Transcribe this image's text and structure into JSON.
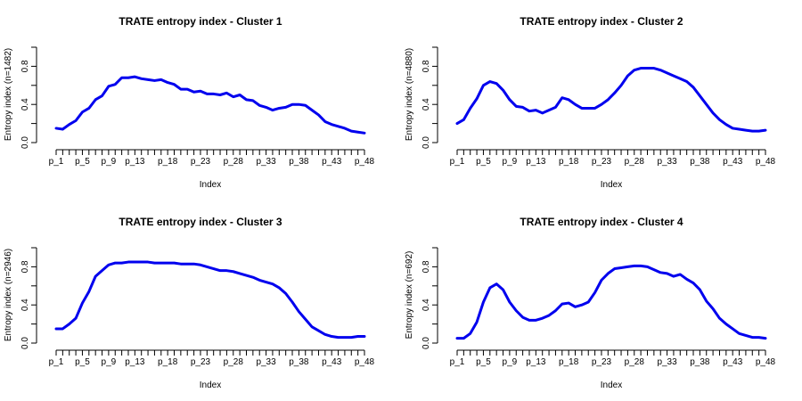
{
  "colors": {
    "series": "#0000ee",
    "axis": "#000000"
  },
  "chart_data": [
    {
      "type": "line",
      "title": "TRATE entropy index - Cluster 1",
      "xlabel": "Index",
      "ylabel": "Entropy index (n=1482)",
      "x_tick_labels": [
        "p_1",
        "p_5",
        "p_9",
        "p_13",
        "p_18",
        "p_23",
        "p_28",
        "p_33",
        "p_38",
        "p_43",
        "p_48"
      ],
      "y_ticks": [
        "0.0",
        "0.4",
        "0.8"
      ],
      "ylim": [
        0,
        1
      ],
      "values": [
        0.15,
        0.14,
        0.19,
        0.23,
        0.32,
        0.36,
        0.45,
        0.49,
        0.59,
        0.61,
        0.68,
        0.68,
        0.69,
        0.67,
        0.66,
        0.65,
        0.66,
        0.63,
        0.61,
        0.56,
        0.56,
        0.53,
        0.54,
        0.51,
        0.51,
        0.5,
        0.52,
        0.48,
        0.5,
        0.45,
        0.44,
        0.39,
        0.37,
        0.34,
        0.36,
        0.37,
        0.4,
        0.4,
        0.39,
        0.34,
        0.29,
        0.22,
        0.19,
        0.17,
        0.15,
        0.12,
        0.11,
        0.1
      ]
    },
    {
      "type": "line",
      "title": "TRATE entropy index - Cluster 2",
      "xlabel": "Index",
      "ylabel": "Entropy index (n=4880)",
      "x_tick_labels": [
        "p_1",
        "p_5",
        "p_9",
        "p_13",
        "p_18",
        "p_23",
        "p_28",
        "p_33",
        "p_38",
        "p_43",
        "p_48"
      ],
      "y_ticks": [
        "0.0",
        "0.4",
        "0.8"
      ],
      "ylim": [
        0,
        1
      ],
      "values": [
        0.2,
        0.24,
        0.36,
        0.46,
        0.6,
        0.64,
        0.62,
        0.55,
        0.45,
        0.38,
        0.37,
        0.33,
        0.34,
        0.31,
        0.34,
        0.37,
        0.47,
        0.45,
        0.4,
        0.36,
        0.36,
        0.36,
        0.4,
        0.45,
        0.52,
        0.6,
        0.7,
        0.76,
        0.78,
        0.78,
        0.78,
        0.76,
        0.73,
        0.7,
        0.67,
        0.64,
        0.58,
        0.49,
        0.4,
        0.31,
        0.24,
        0.19,
        0.15,
        0.14,
        0.13,
        0.12,
        0.12,
        0.13
      ]
    },
    {
      "type": "line",
      "title": "TRATE entropy index - Cluster 3",
      "xlabel": "Index",
      "ylabel": "Entropy index (n=2946)",
      "x_tick_labels": [
        "p_1",
        "p_5",
        "p_9",
        "p_13",
        "p_18",
        "p_23",
        "p_28",
        "p_33",
        "p_38",
        "p_43",
        "p_48"
      ],
      "y_ticks": [
        "0.0",
        "0.4",
        "0.8"
      ],
      "ylim": [
        0,
        1
      ],
      "values": [
        0.15,
        0.15,
        0.2,
        0.26,
        0.42,
        0.54,
        0.7,
        0.76,
        0.82,
        0.84,
        0.84,
        0.85,
        0.85,
        0.85,
        0.85,
        0.84,
        0.84,
        0.84,
        0.84,
        0.83,
        0.83,
        0.83,
        0.82,
        0.8,
        0.78,
        0.76,
        0.76,
        0.75,
        0.73,
        0.71,
        0.69,
        0.66,
        0.64,
        0.62,
        0.58,
        0.52,
        0.43,
        0.33,
        0.25,
        0.17,
        0.13,
        0.09,
        0.07,
        0.06,
        0.06,
        0.06,
        0.07,
        0.07
      ]
    },
    {
      "type": "line",
      "title": "TRATE entropy index - Cluster 4",
      "xlabel": "Index",
      "ylabel": "Entropy index (n=692)",
      "x_tick_labels": [
        "p_1",
        "p_5",
        "p_9",
        "p_13",
        "p_18",
        "p_23",
        "p_28",
        "p_33",
        "p_38",
        "p_43",
        "p_48"
      ],
      "y_ticks": [
        "0.0",
        "0.4",
        "0.8"
      ],
      "ylim": [
        0,
        1
      ],
      "values": [
        0.05,
        0.05,
        0.1,
        0.22,
        0.43,
        0.58,
        0.62,
        0.56,
        0.43,
        0.34,
        0.27,
        0.24,
        0.24,
        0.26,
        0.29,
        0.34,
        0.41,
        0.42,
        0.38,
        0.4,
        0.43,
        0.53,
        0.66,
        0.73,
        0.78,
        0.79,
        0.8,
        0.81,
        0.81,
        0.8,
        0.77,
        0.74,
        0.73,
        0.7,
        0.72,
        0.67,
        0.63,
        0.56,
        0.44,
        0.36,
        0.26,
        0.2,
        0.15,
        0.1,
        0.08,
        0.06,
        0.06,
        0.05
      ]
    }
  ]
}
